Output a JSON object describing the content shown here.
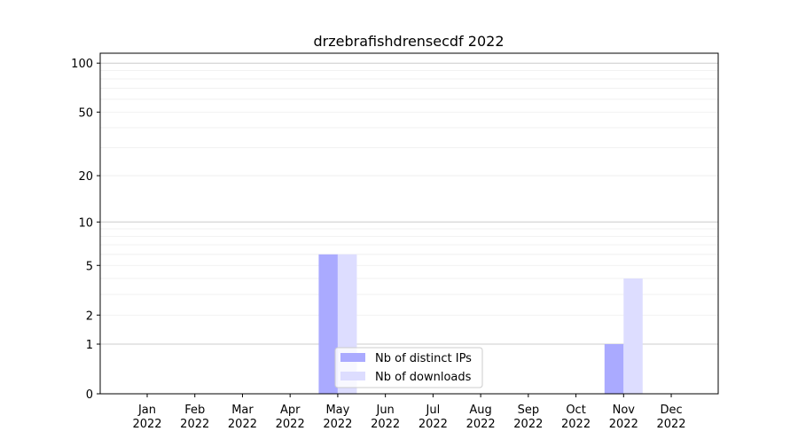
{
  "chart_data": {
    "type": "bar",
    "title": "drzebrafishdrensecdf 2022",
    "xlabel": "",
    "ylabel": "",
    "yscale": "symlog (log10(1+y))",
    "ylim": [
      0,
      115
    ],
    "yticks": [
      0,
      1,
      2,
      5,
      10,
      20,
      50,
      100
    ],
    "grid": true,
    "legend_position": "lower center",
    "categories": [
      "Jan\n2022",
      "Feb\n2022",
      "Mar\n2022",
      "Apr\n2022",
      "May\n2022",
      "Jun\n2022",
      "Jul\n2022",
      "Aug\n2022",
      "Sep\n2022",
      "Oct\n2022",
      "Nov\n2022",
      "Dec\n2022"
    ],
    "series": [
      {
        "name": "Nb of distinct IPs",
        "color": "#aaaaff",
        "values": [
          0,
          0,
          0,
          0,
          6,
          0,
          0,
          0,
          0,
          0,
          1,
          0
        ]
      },
      {
        "name": "Nb of downloads",
        "color": "#ddddff",
        "values": [
          0,
          0,
          0,
          0,
          6,
          0,
          0,
          0,
          0,
          0,
          4,
          0
        ]
      }
    ]
  }
}
